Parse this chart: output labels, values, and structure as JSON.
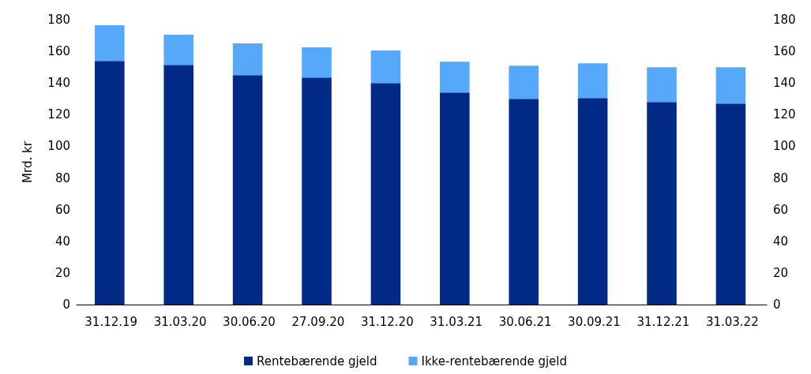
{
  "chart_data": {
    "type": "bar",
    "ylabel": "Mrd. kr",
    "categories": [
      "31.12.19",
      "31.03.20",
      "30.06.20",
      "27.09.20",
      "31.12.20",
      "31.03.21",
      "30.06.21",
      "30.09.21",
      "31.12.21",
      "31.03.22"
    ],
    "series": [
      {
        "name": "Rentebærende gjeld",
        "color": "#002a85",
        "values": [
          154,
          151.5,
          145,
          143.5,
          140,
          134,
          130,
          130.5,
          128,
          127
        ]
      },
      {
        "name": "Ikke-rentebærende gjeld",
        "color": "#56a8fb",
        "values": [
          22.5,
          19,
          20,
          19,
          20.5,
          19.5,
          21,
          22,
          22,
          23
        ]
      }
    ],
    "stacked": true,
    "ylim": [
      0,
      180
    ],
    "yticks": [
      0,
      20,
      40,
      60,
      80,
      100,
      120,
      140,
      160,
      180
    ],
    "y2lim": [
      0,
      180
    ],
    "y2ticks": [
      0,
      20,
      40,
      60,
      80,
      100,
      120,
      140,
      160,
      180
    ],
    "grid": false,
    "legend": "bottom"
  }
}
